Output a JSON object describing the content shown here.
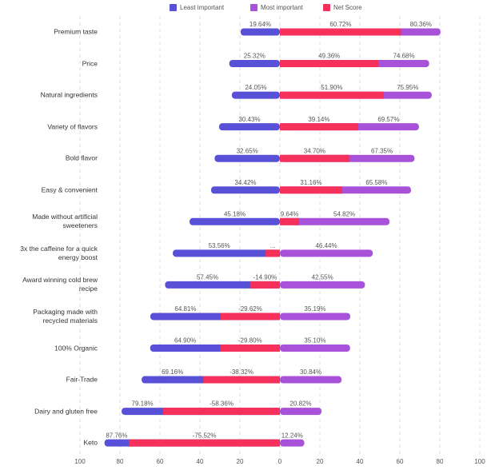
{
  "chart_data": {
    "type": "diverging-bar",
    "categories": [
      "Premium taste",
      "Price",
      "Natural ingredients",
      "Variety of flavors",
      "Bold flavor",
      "Easy & convenient",
      "Made without artificial sweeteners",
      "3x the caffeine for a quick energy boost",
      "Award winning cold brew recipe",
      "Packaging made with recycled materials",
      "100% Organic",
      "Fair-Trade",
      "Dairy and gluten free",
      "Keto"
    ],
    "series": [
      {
        "name": "Least important",
        "color": "#5850d6",
        "values": [
          -19.64,
          -25.32,
          -24.05,
          -30.43,
          -32.65,
          -34.42,
          -45.18,
          -53.56,
          -57.45,
          -64.81,
          -64.9,
          -69.16,
          -79.18,
          -87.76
        ],
        "value_labels": [
          "19.64%",
          "25.32%",
          "24.05%",
          "30.43%",
          "32.65%",
          "34.42%",
          "45.18%",
          "53.56%",
          "57.45%",
          "64.81%",
          "64.90%",
          "69.16%",
          "79.18%",
          "87.76%"
        ]
      },
      {
        "name": "Most important",
        "color": "#a752d8",
        "values": [
          80.36,
          74.68,
          75.95,
          69.57,
          67.35,
          65.58,
          54.82,
          46.44,
          42.55,
          35.19,
          35.1,
          30.84,
          20.82,
          12.24
        ],
        "value_labels": [
          "80.36%",
          "74.68%",
          "75.95%",
          "69.57%",
          "67.35%",
          "65.58%",
          "54.82%",
          "46.44%",
          "42.55%",
          "35.19%",
          "35.10%",
          "30.84%",
          "20.82%",
          "12.24%"
        ]
      },
      {
        "name": "Net Score",
        "color": "#f5305a",
        "values": [
          60.72,
          49.36,
          51.9,
          39.14,
          34.7,
          31.16,
          9.64,
          -7.12,
          -14.9,
          -29.62,
          -29.8,
          -38.32,
          -58.36,
          -75.52
        ],
        "value_labels": [
          "60.72%",
          "49.36%",
          "51.90%",
          "39.14%",
          "34.70%",
          "31.16%",
          "9.64%",
          "...",
          "-14.90%",
          "-29.62%",
          "-29.80%",
          "-38.32%",
          "-58.36%",
          "-75.52%"
        ]
      }
    ],
    "xlim": [
      -100,
      100
    ],
    "xticks": [
      {
        "value": -100,
        "label": "100"
      },
      {
        "value": -80,
        "label": "80"
      },
      {
        "value": -60,
        "label": "60"
      },
      {
        "value": -40,
        "label": "40"
      },
      {
        "value": -20,
        "label": "20"
      },
      0,
      20,
      40,
      60,
      80,
      100
    ],
    "grid": true,
    "legend": "top"
  }
}
